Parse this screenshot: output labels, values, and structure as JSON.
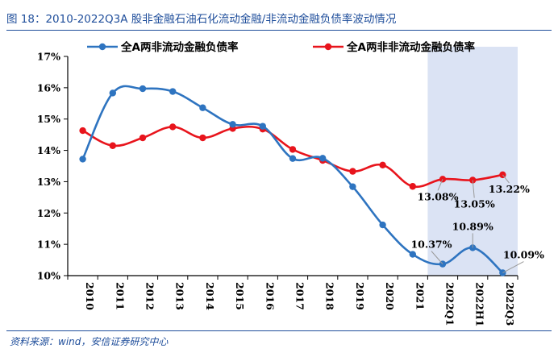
{
  "figure": {
    "title": "图 18：2010-2022Q3A 股非金融石油石化流动金融/非流动金融负债率波动情况",
    "source": "资料来源：wind，安信证券研究中心"
  },
  "colors": {
    "blue": "#2e74c0",
    "red": "#e8141c",
    "highlight": "#dbe3f4",
    "rule": "#1f4e9b"
  },
  "chart_data": {
    "type": "line",
    "title": "图 18：2010-2022Q3A 股非金融石油石化流动金融/非流动金融负债率波动情况",
    "categories": [
      "2010",
      "2011",
      "2012",
      "2013",
      "2014",
      "2015",
      "2016",
      "2017",
      "2018",
      "2019",
      "2020",
      "2021",
      "2022Q1",
      "2022H1",
      "2022Q3"
    ],
    "series": [
      {
        "name": "全A两非流动金融负债率",
        "color": "#2e74c0",
        "values": [
          13.72,
          15.83,
          15.97,
          15.88,
          15.36,
          14.83,
          14.77,
          13.74,
          13.75,
          12.84,
          11.62,
          10.68,
          10.37,
          10.89,
          10.09
        ]
      },
      {
        "name": "全A两非非流动金融负债率",
        "color": "#e8141c",
        "values": [
          14.63,
          14.15,
          14.4,
          14.75,
          14.4,
          14.7,
          14.68,
          14.03,
          13.68,
          13.33,
          13.53,
          12.85,
          13.08,
          13.05,
          13.22
        ]
      }
    ],
    "ylim": [
      10,
      17
    ],
    "yticks": [
      "10%",
      "11%",
      "12%",
      "13%",
      "14%",
      "15%",
      "16%",
      "17%"
    ],
    "highlight_range": [
      "2022Q1",
      "2022Q3"
    ],
    "legend": "top",
    "annotations": [
      {
        "text": "10.37%",
        "series": 0,
        "index": 12
      },
      {
        "text": "10.89%",
        "series": 0,
        "index": 13
      },
      {
        "text": "10.09%",
        "series": 0,
        "index": 14
      },
      {
        "text": "13.08%",
        "series": 1,
        "index": 12
      },
      {
        "text": "13.05%",
        "series": 1,
        "index": 13
      },
      {
        "text": "13.22%",
        "series": 1,
        "index": 14
      }
    ]
  }
}
